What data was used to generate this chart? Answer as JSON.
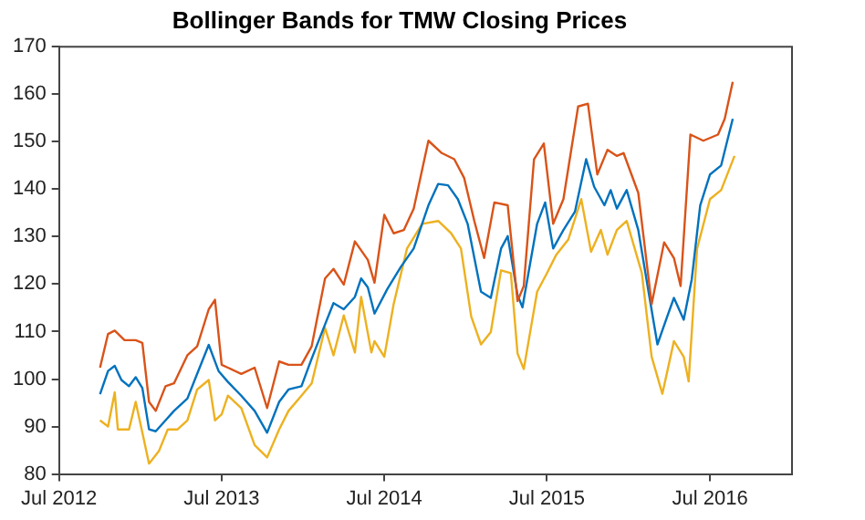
{
  "chart_data": {
    "type": "line",
    "title": "Bollinger Bands for TMW Closing Prices",
    "xlim": [
      "2012-07-01",
      "2017-01-01"
    ],
    "xticks": [
      {
        "value": "2012-07-01",
        "label": "Jul 2012"
      },
      {
        "value": "2013-07-01",
        "label": "Jul 2013"
      },
      {
        "value": "2014-07-01",
        "label": "Jul 2014"
      },
      {
        "value": "2015-07-01",
        "label": "Jul 2015"
      },
      {
        "value": "2016-07-01",
        "label": "Jul 2016"
      }
    ],
    "ylim": [
      80,
      170
    ],
    "yticks": [
      80,
      90,
      100,
      110,
      120,
      130,
      140,
      150,
      160,
      170
    ],
    "grid": false,
    "legend": false,
    "marker": "none",
    "line_style": "solid",
    "series": [
      {
        "color": "#d95319",
        "x": [
          "2012-10-01",
          "2012-10-19",
          "2012-11-03",
          "2012-11-25",
          "2012-12-20",
          "2013-01-04",
          "2013-01-19",
          "2013-02-03",
          "2013-02-25",
          "2013-03-16",
          "2013-04-15",
          "2013-05-07",
          "2013-06-02",
          "2013-06-16",
          "2013-07-01",
          "2013-07-15",
          "2013-08-14",
          "2013-09-13",
          "2013-10-11",
          "2013-11-07",
          "2013-11-28",
          "2013-12-27",
          "2014-01-19",
          "2014-02-18",
          "2014-03-09",
          "2014-04-01",
          "2014-04-26",
          "2014-05-25",
          "2014-06-09",
          "2014-07-01",
          "2014-07-22",
          "2014-08-14",
          "2014-09-05",
          "2014-10-08",
          "2014-11-07",
          "2014-12-05",
          "2014-12-27",
          "2015-01-19",
          "2015-02-10",
          "2015-03-05",
          "2015-04-04",
          "2015-04-26",
          "2015-05-10",
          "2015-06-02",
          "2015-06-24",
          "2015-07-15",
          "2015-08-07",
          "2015-09-09",
          "2015-10-01",
          "2015-10-22",
          "2015-11-14",
          "2015-12-05",
          "2015-12-20",
          "2016-01-22",
          "2016-02-21",
          "2016-03-20",
          "2016-04-11",
          "2016-04-26",
          "2016-05-18",
          "2016-06-16",
          "2016-07-19",
          "2016-08-03",
          "2016-08-21"
        ],
        "values": [
          102.4,
          109.5,
          110.2,
          108.2,
          108.2,
          107.6,
          95.2,
          93.3,
          98.5,
          99.1,
          105.0,
          106.9,
          114.7,
          116.7,
          103.0,
          102.4,
          101.1,
          102.4,
          93.9,
          103.7,
          103.0,
          103.0,
          106.9,
          121.2,
          123.2,
          119.9,
          129.0,
          125.1,
          120.3,
          134.6,
          130.7,
          131.4,
          135.9,
          150.2,
          147.6,
          146.3,
          142.4,
          133.3,
          125.5,
          137.2,
          136.6,
          116.4,
          119.6,
          146.3,
          149.6,
          132.7,
          137.9,
          157.4,
          158.0,
          143.1,
          148.3,
          147.0,
          147.6,
          139.2,
          115.8,
          128.8,
          125.5,
          119.6,
          151.5,
          150.2,
          151.5,
          154.8,
          162.6
        ]
      },
      {
        "color": "#0072bd",
        "x": [
          "2012-10-01",
          "2012-10-19",
          "2012-11-03",
          "2012-11-18",
          "2012-12-05",
          "2012-12-20",
          "2013-01-04",
          "2013-01-19",
          "2013-02-03",
          "2013-02-25",
          "2013-03-16",
          "2013-04-15",
          "2013-05-07",
          "2013-06-02",
          "2013-06-24",
          "2013-07-15",
          "2013-08-14",
          "2013-09-13",
          "2013-10-11",
          "2013-11-07",
          "2013-11-28",
          "2013-12-27",
          "2014-01-19",
          "2014-02-18",
          "2014-03-09",
          "2014-04-01",
          "2014-04-26",
          "2014-05-10",
          "2014-05-25",
          "2014-06-09",
          "2014-07-08",
          "2014-08-07",
          "2014-09-05",
          "2014-10-08",
          "2014-10-30",
          "2014-11-21",
          "2014-12-13",
          "2015-01-04",
          "2015-02-03",
          "2015-02-25",
          "2015-03-20",
          "2015-04-04",
          "2015-04-26",
          "2015-05-07",
          "2015-05-18",
          "2015-06-09",
          "2015-06-27",
          "2015-07-15",
          "2015-08-07",
          "2015-09-02",
          "2015-09-27",
          "2015-10-15",
          "2015-11-07",
          "2015-11-21",
          "2015-12-05",
          "2015-12-27",
          "2016-01-22",
          "2016-02-14",
          "2016-03-05",
          "2016-03-27",
          "2016-04-11",
          "2016-05-03",
          "2016-05-21",
          "2016-06-09",
          "2016-07-01",
          "2016-07-26",
          "2016-08-21"
        ],
        "values": [
          96.8,
          101.7,
          102.8,
          99.8,
          98.5,
          100.4,
          98.1,
          89.4,
          89.0,
          91.3,
          93.3,
          95.9,
          101.1,
          107.2,
          101.7,
          99.4,
          96.5,
          93.3,
          88.7,
          95.2,
          97.8,
          98.5,
          104.3,
          111.5,
          116.0,
          114.7,
          117.3,
          121.2,
          119.3,
          113.8,
          119.0,
          123.6,
          127.5,
          136.6,
          141.1,
          140.8,
          137.9,
          132.7,
          118.4,
          117.1,
          127.5,
          130.1,
          117.7,
          115.1,
          121.0,
          132.7,
          137.2,
          127.5,
          131.4,
          135.3,
          146.3,
          140.5,
          136.6,
          139.8,
          135.9,
          139.8,
          131.4,
          118.4,
          107.3,
          113.2,
          117.1,
          112.5,
          121.0,
          136.6,
          143.1,
          145.0,
          154.8
        ]
      },
      {
        "color": "#edb120",
        "x": [
          "2012-10-01",
          "2012-10-19",
          "2012-11-03",
          "2012-11-10",
          "2012-12-05",
          "2012-12-20",
          "2013-01-04",
          "2013-01-19",
          "2013-02-10",
          "2013-03-02",
          "2013-03-24",
          "2013-04-15",
          "2013-05-07",
          "2013-06-02",
          "2013-06-16",
          "2013-07-01",
          "2013-07-15",
          "2013-08-14",
          "2013-09-13",
          "2013-10-11",
          "2013-11-07",
          "2013-11-28",
          "2013-12-27",
          "2014-01-19",
          "2014-02-18",
          "2014-03-09",
          "2014-04-01",
          "2014-04-26",
          "2014-05-10",
          "2014-06-02",
          "2014-06-09",
          "2014-07-01",
          "2014-07-22",
          "2014-08-21",
          "2014-09-24",
          "2014-10-30",
          "2014-11-28",
          "2014-12-20",
          "2015-01-12",
          "2015-02-03",
          "2015-02-25",
          "2015-03-20",
          "2015-04-11",
          "2015-04-26",
          "2015-05-10",
          "2015-06-09",
          "2015-07-01",
          "2015-07-22",
          "2015-08-18",
          "2015-09-16",
          "2015-10-08",
          "2015-10-30",
          "2015-11-14",
          "2015-12-05",
          "2015-12-27",
          "2016-01-30",
          "2016-02-21",
          "2016-03-16",
          "2016-04-11",
          "2016-05-03",
          "2016-05-14",
          "2016-06-02",
          "2016-07-01",
          "2016-07-26",
          "2016-08-25"
        ],
        "values": [
          91.3,
          90.0,
          97.2,
          89.4,
          89.4,
          95.2,
          88.7,
          82.2,
          84.8,
          89.4,
          89.4,
          91.3,
          97.8,
          99.8,
          91.3,
          92.6,
          96.5,
          93.9,
          86.1,
          83.5,
          89.4,
          93.3,
          96.5,
          99.1,
          110.8,
          105.0,
          113.4,
          105.6,
          117.3,
          105.6,
          108.0,
          104.7,
          115.8,
          127.5,
          132.7,
          133.3,
          130.7,
          127.5,
          113.2,
          107.3,
          109.9,
          122.9,
          122.3,
          105.4,
          102.1,
          118.4,
          122.3,
          126.2,
          129.4,
          137.9,
          126.8,
          131.4,
          126.2,
          131.4,
          133.3,
          122.3,
          104.7,
          96.9,
          108.0,
          104.7,
          99.5,
          127.5,
          137.9,
          139.8,
          147.0
        ]
      }
    ]
  }
}
